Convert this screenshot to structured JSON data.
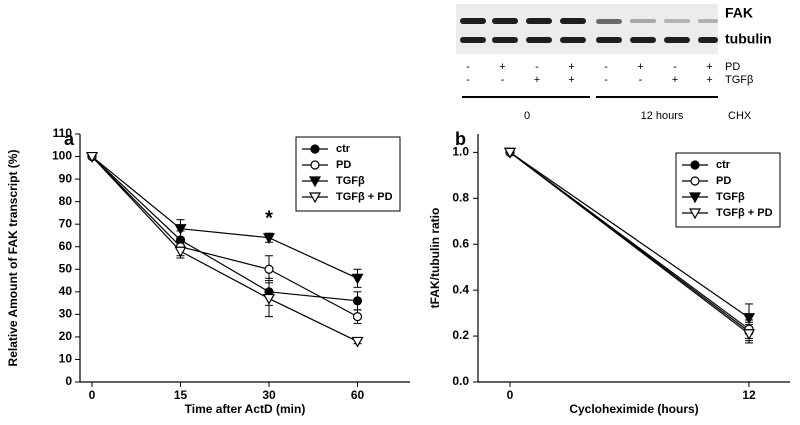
{
  "chart_data": [
    {
      "type": "line",
      "panel_label": "a",
      "xlabel": "Time after ActD (min)",
      "ylabel": "Relative Amount of FAK transcript (%)",
      "categories": [
        "0",
        "15",
        "30",
        "60"
      ],
      "ylim": [
        0,
        110
      ],
      "yticks": [
        0,
        10,
        20,
        30,
        40,
        50,
        60,
        70,
        80,
        90,
        100,
        110
      ],
      "legend": "upper right",
      "annotations": [
        {
          "text": "*",
          "x": "30"
        }
      ],
      "series": [
        {
          "name": "ctr",
          "color": "#000000",
          "marker": "circle",
          "filled": true,
          "values": [
            100,
            63,
            40,
            36
          ],
          "errors": [
            0,
            4,
            6,
            4
          ]
        },
        {
          "name": "PD",
          "color": "#000000",
          "marker": "circle",
          "filled": false,
          "values": [
            100,
            60,
            50,
            29
          ],
          "errors": [
            0,
            4,
            6,
            3
          ]
        },
        {
          "name": "TGFβ",
          "color": "#000000",
          "marker": "triangle-down",
          "filled": true,
          "values": [
            100,
            68,
            64,
            46
          ],
          "errors": [
            0,
            4,
            2,
            4
          ]
        },
        {
          "name": "TGFβ + PD",
          "color": "#000000",
          "marker": "triangle-down",
          "filled": false,
          "values": [
            100,
            58,
            37,
            18
          ],
          "errors": [
            0,
            3,
            8,
            1
          ]
        }
      ]
    },
    {
      "type": "line",
      "panel_label": "b",
      "xlabel": "Cycloheximide (hours)",
      "ylabel": "tFAK/tubulin ratio",
      "categories": [
        "0",
        "12"
      ],
      "ylim": [
        0,
        1.08
      ],
      "yticks": [
        {
          "value": 0,
          "label": "0.0"
        },
        0.2,
        0.4,
        0.6,
        0.8,
        {
          "value": 1,
          "label": "1.0"
        }
      ],
      "legend": "upper right",
      "series": [
        {
          "name": "ctr",
          "color": "#000000",
          "marker": "circle",
          "filled": true,
          "values": [
            1,
            0.22
          ],
          "errors": [
            0,
            0.04
          ]
        },
        {
          "name": "PD",
          "color": "#000000",
          "marker": "circle",
          "filled": false,
          "values": [
            1,
            0.23
          ],
          "errors": [
            0,
            0.04
          ]
        },
        {
          "name": "TGFβ",
          "color": "#000000",
          "marker": "triangle-down",
          "filled": true,
          "values": [
            1,
            0.28
          ],
          "errors": [
            0,
            0.06
          ]
        },
        {
          "name": "TGFβ + PD",
          "color": "#000000",
          "marker": "triangle-down",
          "filled": false,
          "values": [
            1,
            0.21
          ],
          "errors": [
            0,
            0.04
          ]
        }
      ]
    }
  ],
  "blot": {
    "bands": [
      "FAK",
      "tubulin"
    ],
    "treatments": [
      {
        "name": "PD",
        "signs": [
          "-",
          "+",
          "-",
          "+",
          "-",
          "+",
          "-",
          "+"
        ]
      },
      {
        "name": "TGFβ",
        "signs": [
          "-",
          "-",
          "+",
          "+",
          "-",
          "-",
          "+",
          "+"
        ]
      }
    ],
    "groups": [
      "0",
      "12 hours"
    ],
    "group_label": "CHX"
  }
}
